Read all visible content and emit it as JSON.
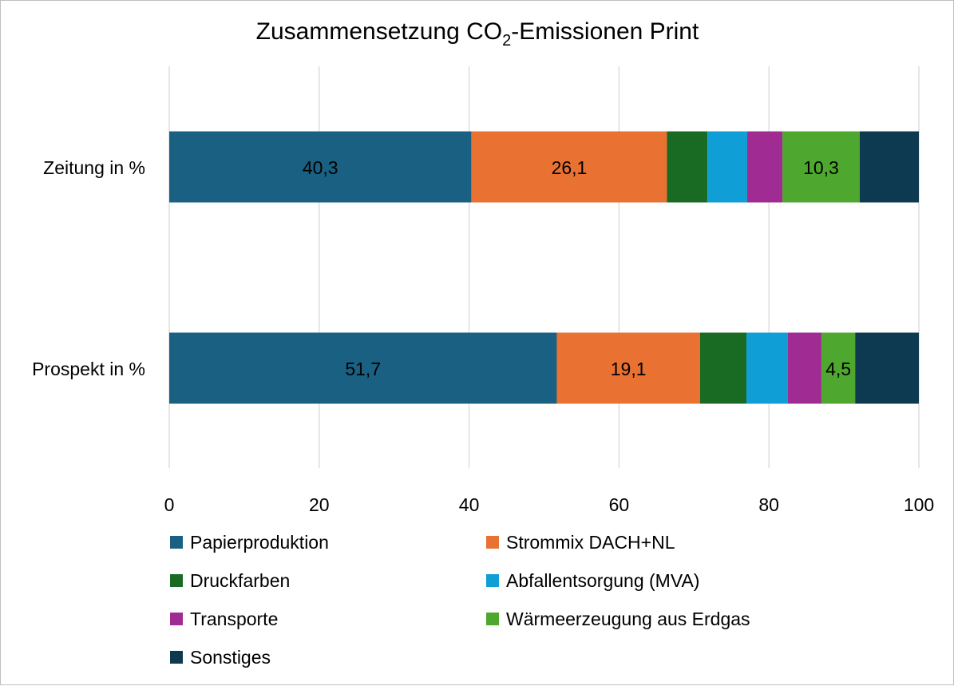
{
  "chart_data": {
    "type": "bar",
    "orientation": "horizontal",
    "stacked": true,
    "title": "Zusammensetzung CO2-Emissionen Print",
    "title_parts": {
      "main": "Zusammensetzung CO",
      "sub": "2",
      "rest": "-Emissionen Print"
    },
    "categories": [
      "Zeitung in %",
      "Prospekt in %"
    ],
    "series": [
      {
        "name": "Papierproduktion",
        "color": "#1a6082",
        "values": [
          40.3,
          51.7
        ],
        "labels": [
          "40,3",
          "51,7"
        ]
      },
      {
        "name": "Strommix DACH+NL",
        "color": "#e97132",
        "values": [
          26.1,
          19.1
        ],
        "labels": [
          "26,1",
          "19,1"
        ]
      },
      {
        "name": "Druckfarben",
        "color": "#196b24",
        "values": [
          5.4,
          6.2
        ],
        "labels": [
          null,
          null
        ]
      },
      {
        "name": "Abfallentsorgung (MVA)",
        "color": "#0f9ed5",
        "values": [
          5.3,
          5.5
        ],
        "labels": [
          null,
          null
        ]
      },
      {
        "name": "Transporte",
        "color": "#a02b93",
        "values": [
          4.7,
          4.5
        ],
        "labels": [
          null,
          null
        ]
      },
      {
        "name": "Wärmeerzeugung aus Erdgas",
        "color": "#4ea72e",
        "values": [
          10.3,
          4.5
        ],
        "labels": [
          "10,3",
          "4,5"
        ]
      },
      {
        "name": "Sonstiges",
        "color": "#0e3a51",
        "values": [
          7.9,
          8.5
        ],
        "labels": [
          null,
          null
        ]
      }
    ],
    "xlim": [
      0,
      100
    ],
    "xticks": [
      "0",
      "20",
      "40",
      "60",
      "80",
      "100"
    ],
    "xtick_values": [
      0,
      20,
      40,
      60,
      80,
      100
    ],
    "grid": true,
    "legend": "bottom",
    "xlabel": "",
    "ylabel": ""
  }
}
